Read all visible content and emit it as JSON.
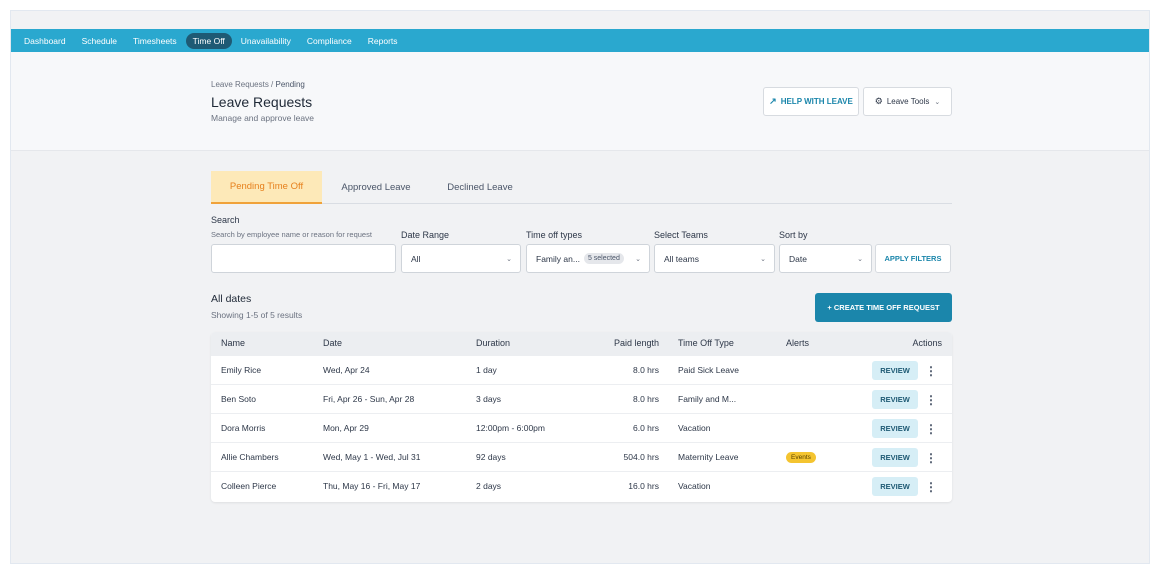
{
  "nav": {
    "items": [
      {
        "label": "Dashboard"
      },
      {
        "label": "Schedule"
      },
      {
        "label": "Timesheets"
      },
      {
        "label": "Time Off"
      },
      {
        "label": "Unavailability"
      },
      {
        "label": "Compliance"
      },
      {
        "label": "Reports"
      }
    ],
    "active": "Time Off"
  },
  "header": {
    "breadcrumb_parent": "Leave Requests",
    "breadcrumb_sep": " / ",
    "breadcrumb_current": "Pending",
    "title": "Leave Requests",
    "subtitle": "Manage and approve leave",
    "help_label": "HELP WITH LEAVE",
    "tools_label": "Leave Tools"
  },
  "tabs": [
    {
      "label": "Pending Time Off",
      "active": true
    },
    {
      "label": "Approved Leave",
      "active": false
    },
    {
      "label": "Declined Leave",
      "active": false
    }
  ],
  "filters": {
    "search_label": "Search",
    "search_hint": "Search by employee name or reason for request",
    "search_value": "",
    "date_range_label": "Date Range",
    "date_range_value": "All",
    "time_off_types_label": "Time off types",
    "time_off_types_value": "Family an...",
    "time_off_types_badge": "5 selected",
    "teams_label": "Select Teams",
    "teams_value": "All teams",
    "sort_label": "Sort by",
    "sort_value": "Date",
    "apply_label": "APPLY FILTERS"
  },
  "results": {
    "title": "All dates",
    "count": "Showing 1-5 of 5 results",
    "create_label": "+ CREATE TIME OFF REQUEST"
  },
  "table": {
    "columns": [
      "Name",
      "Date",
      "Duration",
      "Paid length",
      "Time Off Type",
      "Alerts",
      "Actions"
    ],
    "review_label": "REVIEW",
    "rows": [
      {
        "name": "Emily Rice",
        "date": "Wed, Apr 24",
        "duration": "1 day",
        "paid": "8.0 hrs",
        "type": "Paid Sick Leave",
        "alert": ""
      },
      {
        "name": "Ben Soto",
        "date": "Fri, Apr 26 - Sun, Apr 28",
        "duration": "3 days",
        "paid": "8.0 hrs",
        "type": "Family and M...",
        "alert": ""
      },
      {
        "name": "Dora Morris",
        "date": "Mon, Apr 29",
        "duration": "12:00pm - 6:00pm",
        "paid": "6.0 hrs",
        "type": "Vacation",
        "alert": ""
      },
      {
        "name": "Allie Chambers",
        "date": "Wed, May 1 - Wed, Jul 31",
        "duration": "92 days",
        "paid": "504.0 hrs",
        "type": "Maternity Leave",
        "alert": "Events"
      },
      {
        "name": "Colleen Pierce",
        "date": "Thu, May 16 - Fri, May 17",
        "duration": "2 days",
        "paid": "16.0 hrs",
        "type": "Vacation",
        "alert": ""
      }
    ]
  }
}
